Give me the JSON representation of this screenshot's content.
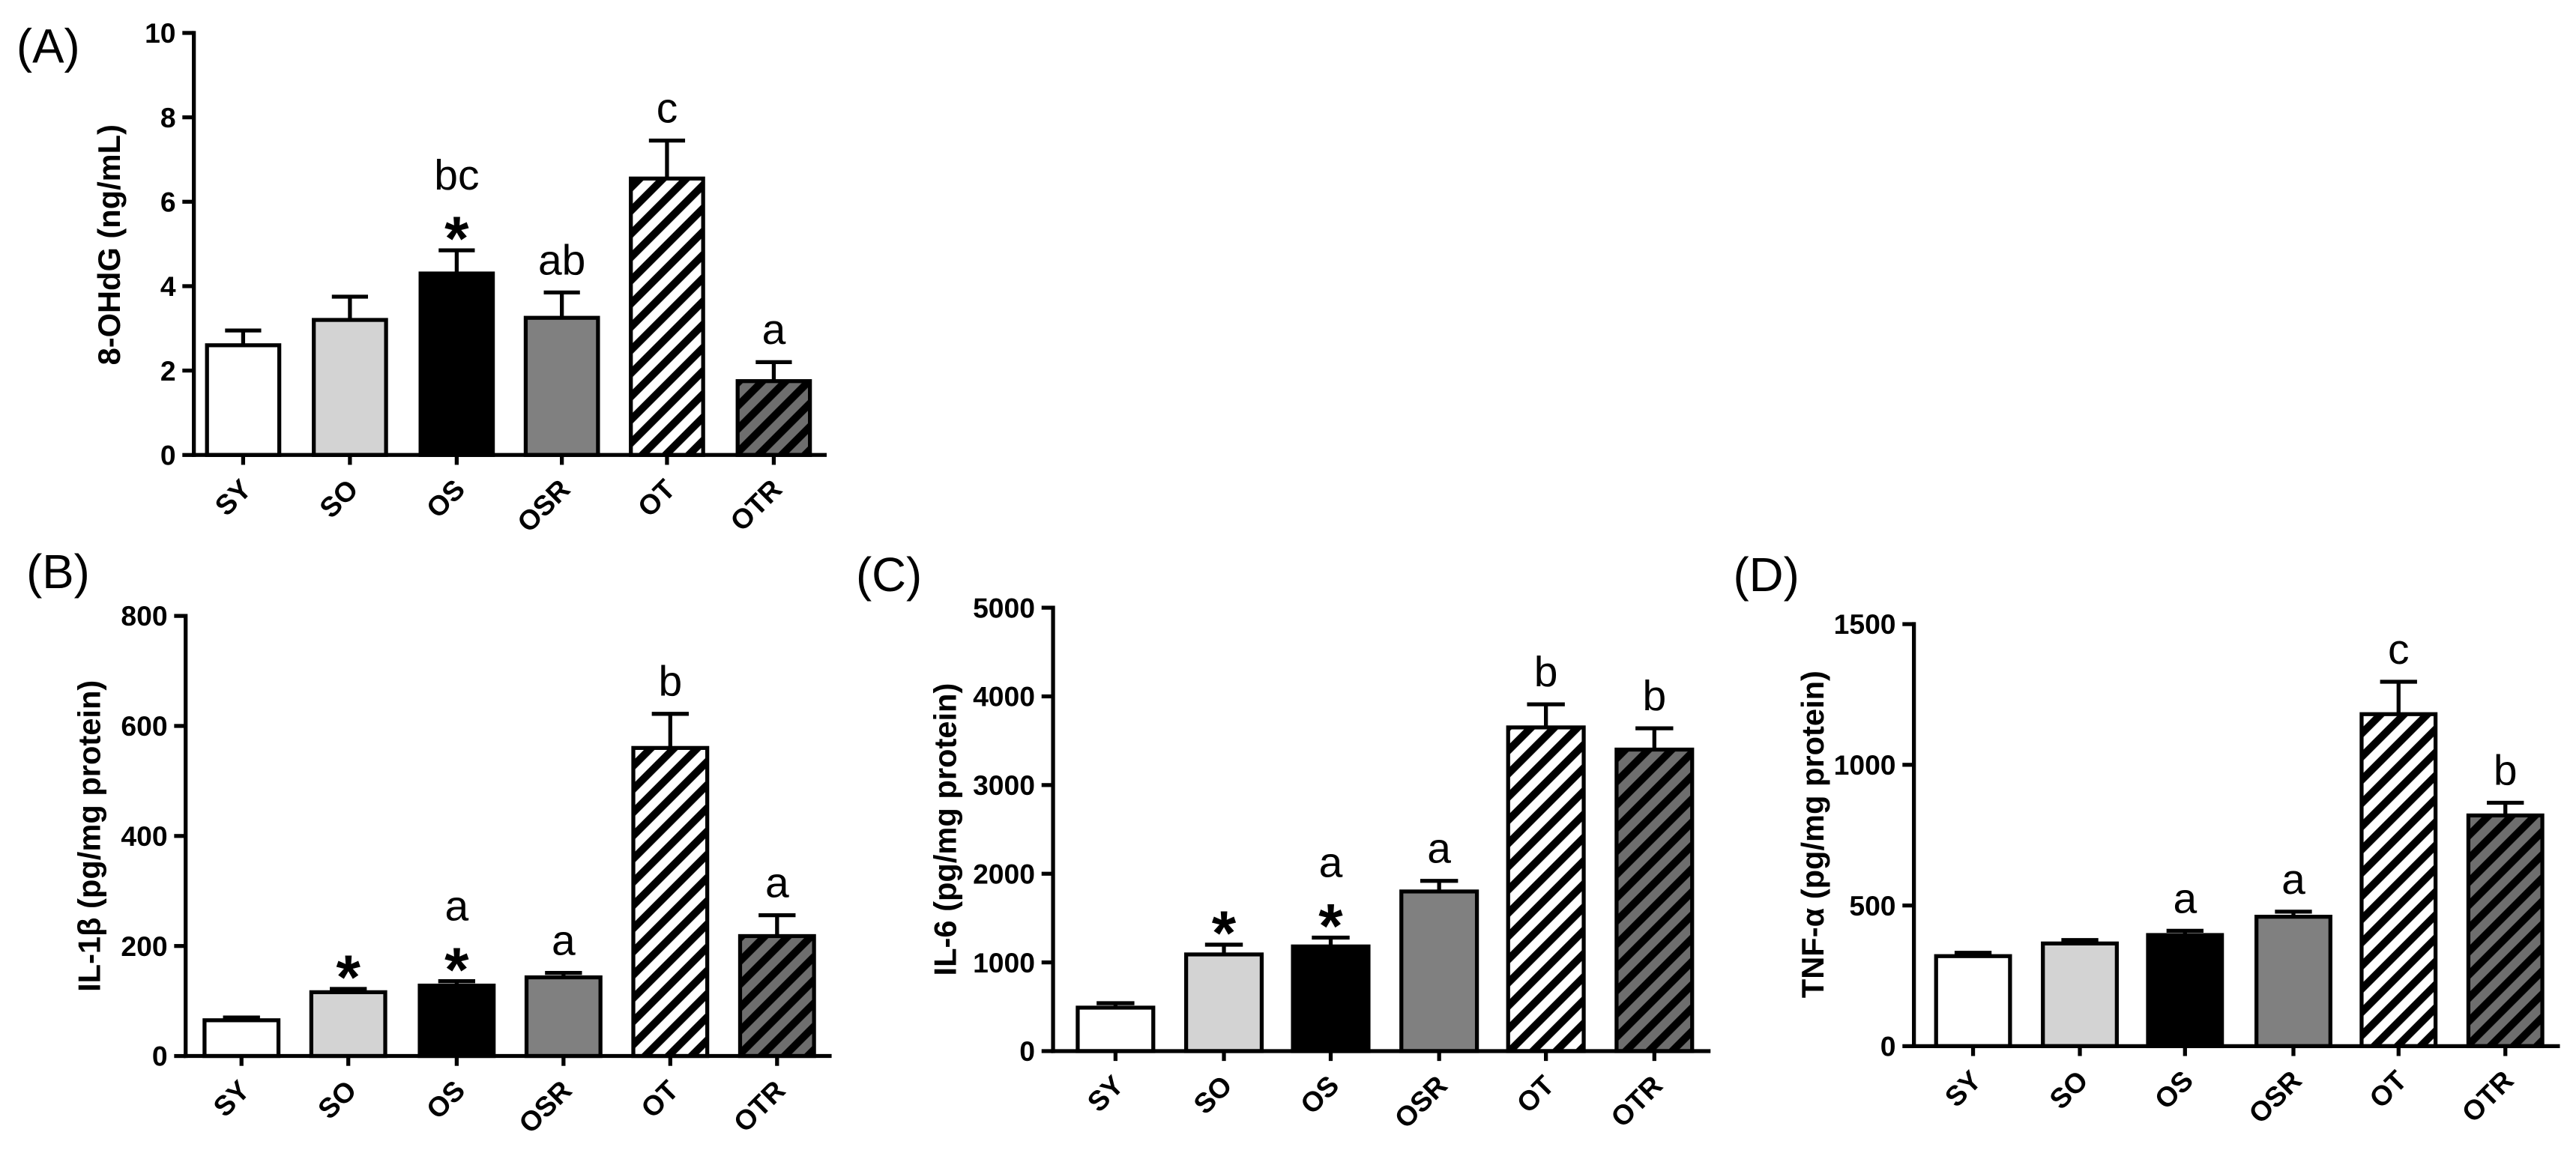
{
  "bar_styles": [
    {
      "fill": "#ffffff",
      "hatch": null
    },
    {
      "fill": "#d3d3d3",
      "hatch": null
    },
    {
      "fill": "#000000",
      "hatch": null
    },
    {
      "fill": "#808080",
      "hatch": null
    },
    {
      "fill": "#ffffff",
      "hatch": "#000000"
    },
    {
      "fill": "#6e6e6e",
      "hatch": "#000000"
    }
  ],
  "chart_data": [
    {
      "panel": "(A)",
      "type": "bar",
      "categories": [
        "SY",
        "SO",
        "OS",
        "OSR",
        "OT",
        "OTR"
      ],
      "values": [
        2.6,
        3.2,
        4.3,
        3.25,
        6.55,
        1.75
      ],
      "errors": [
        0.35,
        0.55,
        0.55,
        0.6,
        0.9,
        0.45
      ],
      "letters": [
        "",
        "",
        "bc",
        "ab",
        "c",
        "a"
      ],
      "stars": [
        "",
        "",
        "*",
        "",
        "",
        ""
      ],
      "ylabel": "8-OHdG (ng/mL)",
      "ylim": [
        0,
        10
      ],
      "yticks": [
        0,
        2,
        4,
        6,
        8,
        10
      ]
    },
    {
      "panel": "(B)",
      "type": "bar",
      "categories": [
        "SY",
        "SO",
        "OS",
        "OSR",
        "OT",
        "OTR"
      ],
      "values": [
        65,
        116,
        128,
        143,
        560,
        218
      ],
      "errors": [
        5,
        6,
        8,
        8,
        62,
        38
      ],
      "letters": [
        "",
        "",
        "a",
        "a",
        "b",
        "a"
      ],
      "stars": [
        "",
        "*",
        "*",
        "",
        "",
        ""
      ],
      "ylabel": "IL-1β (pg/mg protein)",
      "ylim": [
        0,
        800
      ],
      "yticks": [
        0,
        200,
        400,
        600,
        800
      ]
    },
    {
      "panel": "(C)",
      "type": "bar",
      "categories": [
        "SY",
        "SO",
        "OS",
        "OSR",
        "OT",
        "OTR"
      ],
      "values": [
        490,
        1090,
        1180,
        1800,
        3650,
        3400
      ],
      "errors": [
        50,
        110,
        100,
        120,
        260,
        240
      ],
      "letters": [
        "",
        "",
        "a",
        "a",
        "b",
        "b"
      ],
      "stars": [
        "",
        "*",
        "*",
        "",
        "",
        ""
      ],
      "ylabel": "IL-6 (pg/mg protein)",
      "ylim": [
        0,
        5000
      ],
      "yticks": [
        0,
        1000,
        2000,
        3000,
        4000,
        5000
      ]
    },
    {
      "panel": "(D)",
      "type": "bar",
      "categories": [
        "SY",
        "SO",
        "OS",
        "OSR",
        "OT",
        "OTR"
      ],
      "values": [
        320,
        365,
        395,
        460,
        1180,
        820
      ],
      "errors": [
        12,
        12,
        15,
        18,
        115,
        45
      ],
      "letters": [
        "",
        "",
        "a",
        "a",
        "c",
        "b"
      ],
      "stars": [
        "",
        "",
        "",
        "",
        "",
        ""
      ],
      "ylabel": "TNF-α (pg/mg protein)",
      "ylim": [
        0,
        1500
      ],
      "yticks": [
        0,
        500,
        1000,
        1500
      ]
    }
  ]
}
